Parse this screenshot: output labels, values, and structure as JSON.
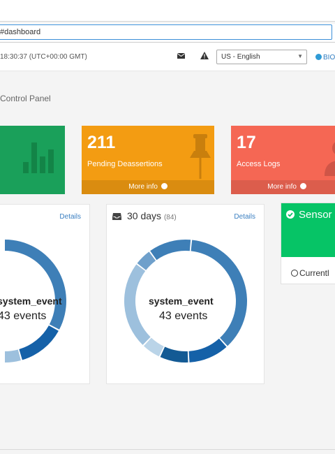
{
  "browser": {
    "url": "#dashboard"
  },
  "header": {
    "clock": "18:30:37 (UTC+00:00 GMT)",
    "language": {
      "selected": "US - English"
    },
    "bios_label": "BIO",
    "icons": [
      "mail-icon",
      "warning-icon",
      "info-icon"
    ]
  },
  "page": {
    "title": "Control Panel"
  },
  "stat_boxes": [
    {
      "value": "",
      "label": "",
      "footer": "",
      "color": "#1aa05a",
      "icon": "bar-chart-icon"
    },
    {
      "value": "211",
      "label": "Pending Deassertions",
      "footer": "More info",
      "color": "#f39c12",
      "icon": "pushpin-icon"
    },
    {
      "value": "17",
      "label": "Access Logs",
      "footer": "More info",
      "color": "#f56754",
      "icon": "user-icon"
    }
  ],
  "cards": {
    "left": {
      "details": "Details",
      "donut_name": "system_event",
      "donut_count": "43 events"
    },
    "mid": {
      "title": "30 days",
      "count": "(84)",
      "details": "Details",
      "donut_name": "system_event",
      "donut_count": "43 events"
    },
    "sensor": {
      "title": "Sensor",
      "footer": "Currentl"
    }
  },
  "colors": {
    "accent": "#3a7fc1",
    "donut_main": "#3e7fb7",
    "donut_dark": "#1561a8",
    "donut_light": "#9dc0dd",
    "donut_pale": "#bad4e8",
    "sensor_green": "#06c466"
  }
}
